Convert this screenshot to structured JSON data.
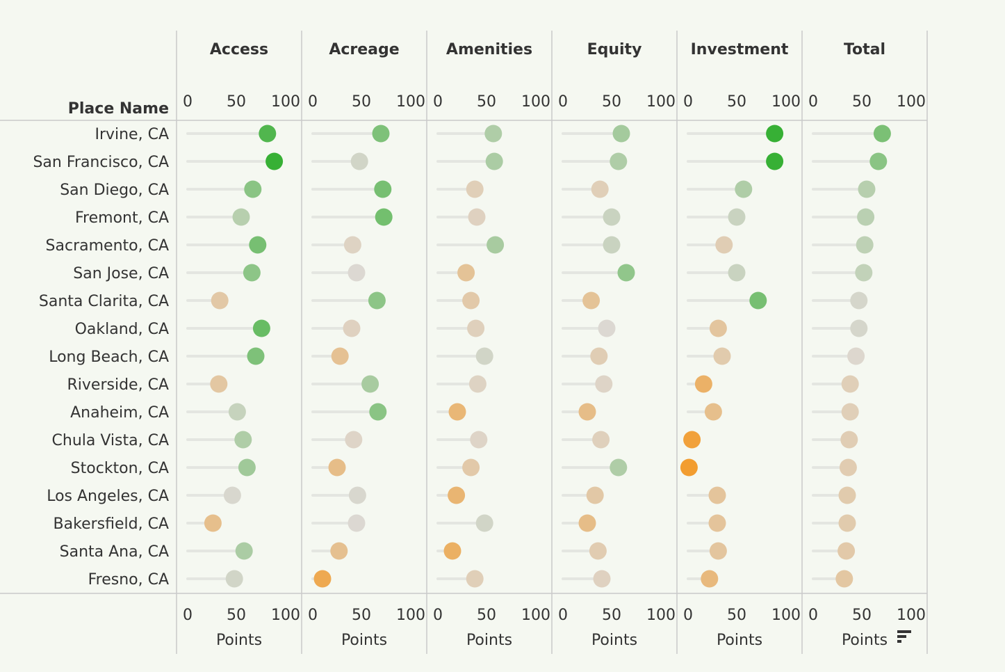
{
  "chart_data": {
    "type": "scatter",
    "row_header": "Place Name",
    "x_axis_label": "Points",
    "xlim": [
      0,
      100
    ],
    "x_ticks": [
      0,
      50,
      100
    ],
    "rows": [
      "Irvine, CA",
      "San Francisco, CA",
      "San Diego, CA",
      "Fremont, CA",
      "Sacramento, CA",
      "San Jose, CA",
      "Santa Clarita, CA",
      "Oakland, CA",
      "Long Beach, CA",
      "Riverside, CA",
      "Anaheim, CA",
      "Chula Vista, CA",
      "Stockton, CA",
      "Los Angeles, CA",
      "Bakersfield, CA",
      "Santa Ana, CA",
      "Fresno, CA"
    ],
    "series": [
      {
        "name": "Access",
        "values": [
          82,
          89,
          67,
          55,
          72,
          66,
          33,
          76,
          70,
          32,
          51,
          57,
          61,
          46,
          26,
          58,
          48
        ]
      },
      {
        "name": "Acreage",
        "values": [
          70,
          48,
          72,
          73,
          41,
          45,
          66,
          40,
          28,
          59,
          67,
          42,
          25,
          46,
          45,
          27,
          10
        ]
      },
      {
        "name": "Amenities",
        "values": [
          57,
          58,
          38,
          40,
          59,
          29,
          34,
          39,
          48,
          41,
          20,
          42,
          34,
          19,
          48,
          15,
          38
        ]
      },
      {
        "name": "Equity",
        "values": [
          60,
          57,
          38,
          50,
          50,
          65,
          29,
          45,
          37,
          42,
          25,
          39,
          57,
          33,
          25,
          36,
          40
        ]
      },
      {
        "name": "Investment",
        "values": [
          89,
          89,
          57,
          50,
          37,
          50,
          72,
          31,
          35,
          16,
          26,
          4,
          1,
          30,
          30,
          31,
          22
        ]
      },
      {
        "name": "Total",
        "values": [
          71,
          67,
          55,
          54,
          53,
          52,
          47,
          47,
          44,
          38,
          38,
          37,
          36,
          35,
          35,
          34,
          32
        ]
      }
    ],
    "colors": {
      "low": "#f39c2c",
      "mid": "#dcd8d2",
      "high": "#0ea60e",
      "stem": "#e4e6e1",
      "gridline": "#c9c9c9",
      "text": "#333333"
    }
  }
}
